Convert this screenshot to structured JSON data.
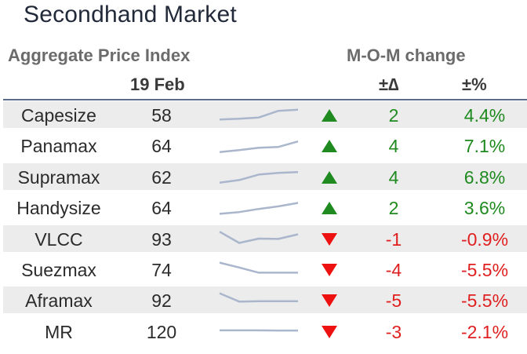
{
  "title": "Secondhand Market",
  "headers": {
    "index_label": "Aggregate Price Index",
    "date_label": "19 Feb",
    "change_label": "M-O-M change",
    "delta_label": "±∆",
    "pct_label": "±%"
  },
  "colors": {
    "up": "#1f8a1f",
    "down": "#e02020",
    "spark": "#a9b6cc",
    "rule": "#5b6b8a",
    "shade": "#ececec"
  },
  "rows": [
    {
      "name": "Capesize",
      "value": "58",
      "direction": "up",
      "delta": "2",
      "pct": "4.4%",
      "trend": [
        0.22,
        0.26,
        0.33,
        0.72,
        0.78
      ]
    },
    {
      "name": "Panamax",
      "value": "64",
      "direction": "up",
      "delta": "4",
      "pct": "7.1%",
      "trend": [
        0.1,
        0.22,
        0.35,
        0.4,
        0.72
      ]
    },
    {
      "name": "Supramax",
      "value": "62",
      "direction": "up",
      "delta": "4",
      "pct": "6.8%",
      "trend": [
        0.15,
        0.3,
        0.62,
        0.72,
        0.76
      ]
    },
    {
      "name": "Handysize",
      "value": "64",
      "direction": "up",
      "delta": "2",
      "pct": "3.6%",
      "trend": [
        0.12,
        0.22,
        0.4,
        0.55,
        0.75
      ]
    },
    {
      "name": "VLCC",
      "value": "93",
      "direction": "down",
      "delta": "-1",
      "pct": "-0.9%",
      "trend": [
        0.9,
        0.25,
        0.5,
        0.48,
        0.75
      ]
    },
    {
      "name": "Suezmax",
      "value": "74",
      "direction": "down",
      "delta": "-4",
      "pct": "-5.5%",
      "trend": [
        0.88,
        0.6,
        0.3,
        0.3,
        0.3
      ]
    },
    {
      "name": "Aframax",
      "value": "92",
      "direction": "down",
      "delta": "-5",
      "pct": "-5.5%",
      "trend": [
        0.88,
        0.4,
        0.42,
        0.42,
        0.42
      ]
    },
    {
      "name": "MR",
      "value": "120",
      "direction": "down",
      "delta": "-3",
      "pct": "-2.1%",
      "trend": [
        0.55,
        0.55,
        0.55,
        0.54,
        0.54
      ]
    }
  ]
}
